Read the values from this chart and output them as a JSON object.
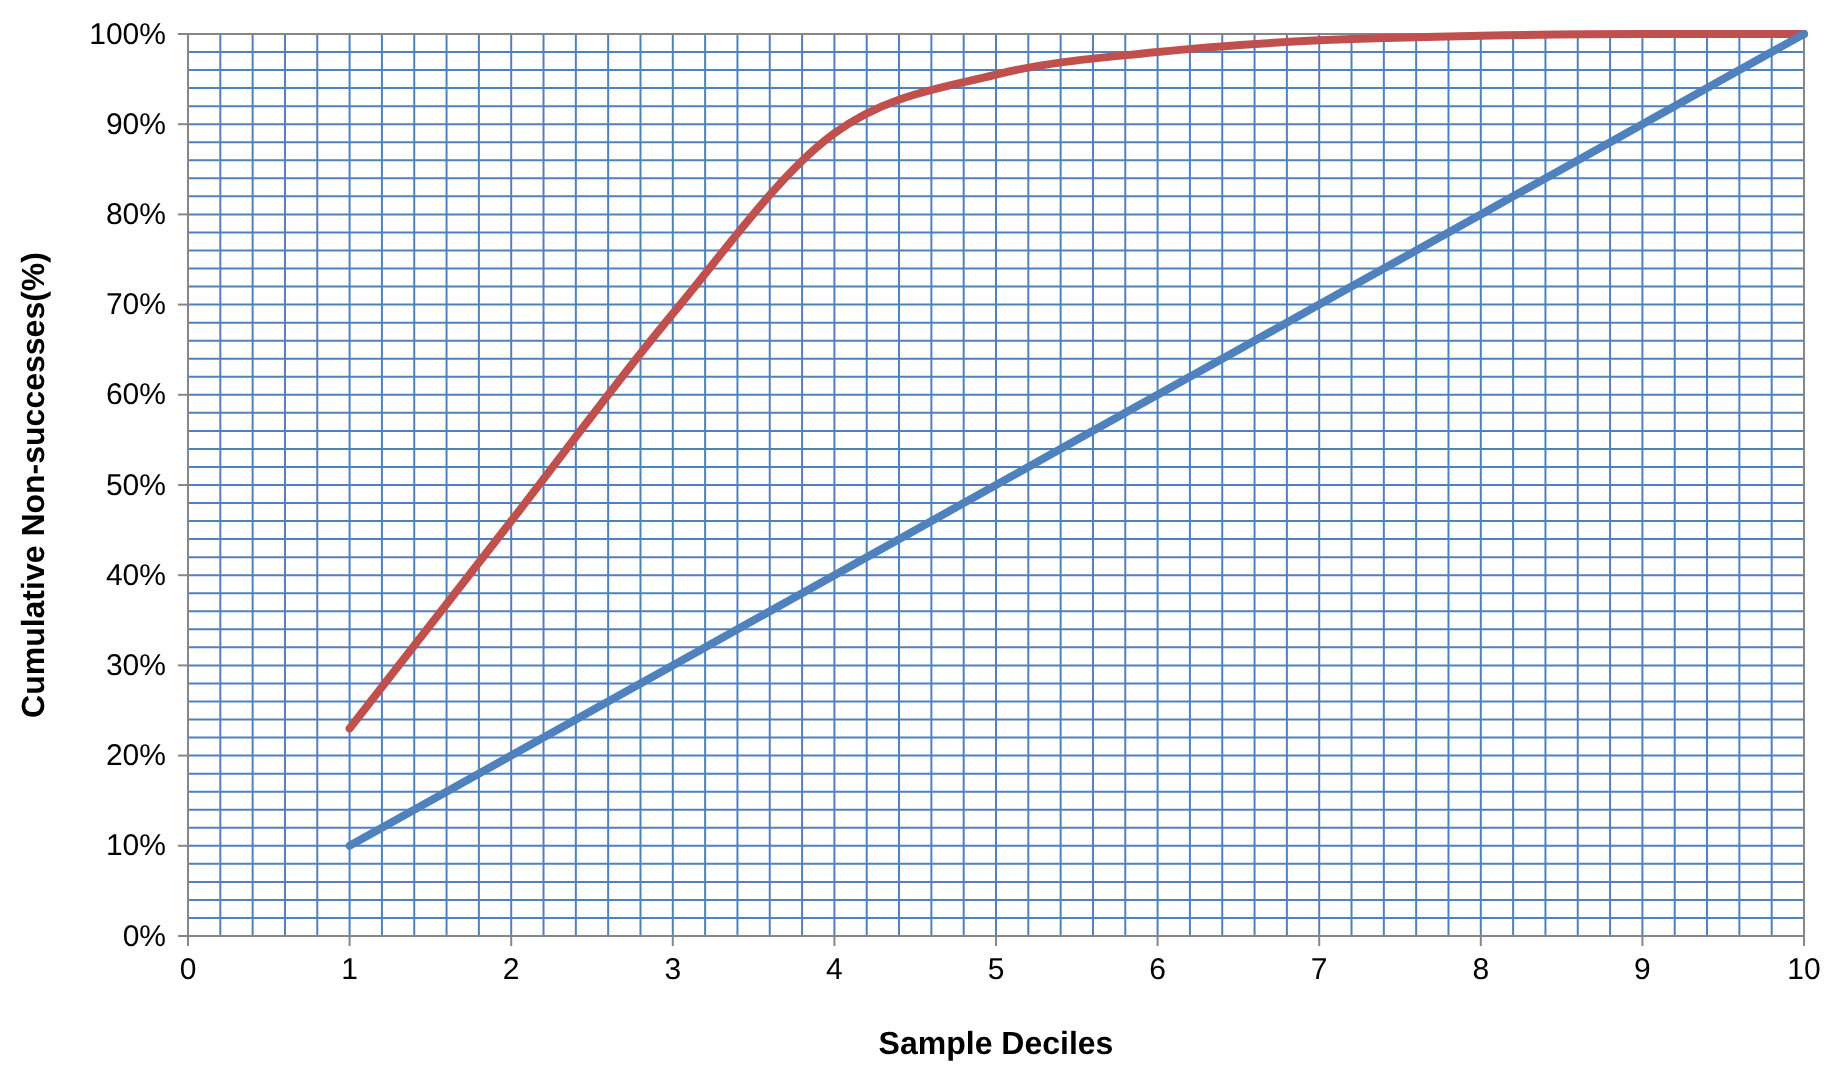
{
  "chart_data": {
    "type": "line",
    "xlabel": "Sample Deciles",
    "ylabel": "Cumulative Non-successes(%)",
    "x": [
      1,
      2,
      3,
      4,
      5,
      6,
      7,
      8,
      9,
      10
    ],
    "series": [
      {
        "color": "#c0504d",
        "values": [
          23,
          46,
          69,
          89,
          95.5,
          98,
          99.3,
          99.8,
          100,
          100
        ]
      },
      {
        "color": "#4f81bd",
        "values": [
          10,
          20,
          30,
          40,
          50,
          60,
          70,
          80,
          90,
          100
        ]
      }
    ],
    "xlim": [
      0,
      10
    ],
    "xticks": [
      0,
      {
        "value": 0.2,
        "label": null
      },
      {
        "value": 0.4,
        "label": null
      },
      {
        "value": 0.6,
        "label": null
      },
      {
        "value": 0.8,
        "label": null
      },
      1,
      {
        "value": 1.2,
        "label": null
      },
      {
        "value": 1.4,
        "label": null
      },
      {
        "value": 1.6,
        "label": null
      },
      {
        "value": 1.8,
        "label": null
      },
      2,
      {
        "value": 2.2,
        "label": null
      },
      {
        "value": 2.4,
        "label": null
      },
      {
        "value": 2.6,
        "label": null
      },
      {
        "value": 2.8,
        "label": null
      },
      3,
      {
        "value": 3.2,
        "label": null
      },
      {
        "value": 3.4,
        "label": null
      },
      {
        "value": 3.6,
        "label": null
      },
      {
        "value": 3.8,
        "label": null
      },
      4,
      {
        "value": 4.2,
        "label": null
      },
      {
        "value": 4.4,
        "label": null
      },
      {
        "value": 4.6,
        "label": null
      },
      {
        "value": 4.8,
        "label": null
      },
      5,
      {
        "value": 5.2,
        "label": null
      },
      {
        "value": 5.4,
        "label": null
      },
      {
        "value": 5.6,
        "label": null
      },
      {
        "value": 5.8,
        "label": null
      },
      6,
      {
        "value": 6.2,
        "label": null
      },
      {
        "value": 6.4,
        "label": null
      },
      {
        "value": 6.6,
        "label": null
      },
      {
        "value": 6.8,
        "label": null
      },
      7,
      {
        "value": 7.2,
        "label": null
      },
      {
        "value": 7.4,
        "label": null
      },
      {
        "value": 7.6,
        "label": null
      },
      {
        "value": 7.8,
        "label": null
      },
      8,
      {
        "value": 8.2,
        "label": null
      },
      {
        "value": 8.4,
        "label": null
      },
      {
        "value": 8.6,
        "label": null
      },
      {
        "value": 8.8,
        "label": null
      },
      9,
      {
        "value": 9.2,
        "label": null
      },
      {
        "value": 9.4,
        "label": null
      },
      {
        "value": 9.6,
        "label": null
      },
      {
        "value": 9.8,
        "label": null
      },
      10
    ],
    "ylim": [
      0,
      100
    ],
    "yticks": [
      {
        "value": 0,
        "label": "0%"
      },
      {
        "value": 2,
        "label": null
      },
      {
        "value": 4,
        "label": null
      },
      {
        "value": 6,
        "label": null
      },
      {
        "value": 8,
        "label": null
      },
      {
        "value": 10,
        "label": "10%"
      },
      {
        "value": 12,
        "label": null
      },
      {
        "value": 14,
        "label": null
      },
      {
        "value": 16,
        "label": null
      },
      {
        "value": 18,
        "label": null
      },
      {
        "value": 20,
        "label": "20%"
      },
      {
        "value": 22,
        "label": null
      },
      {
        "value": 24,
        "label": null
      },
      {
        "value": 26,
        "label": null
      },
      {
        "value": 28,
        "label": null
      },
      {
        "value": 30,
        "label": "30%"
      },
      {
        "value": 32,
        "label": null
      },
      {
        "value": 34,
        "label": null
      },
      {
        "value": 36,
        "label": null
      },
      {
        "value": 38,
        "label": null
      },
      {
        "value": 40,
        "label": "40%"
      },
      {
        "value": 42,
        "label": null
      },
      {
        "value": 44,
        "label": null
      },
      {
        "value": 46,
        "label": null
      },
      {
        "value": 48,
        "label": null
      },
      {
        "value": 50,
        "label": "50%"
      },
      {
        "value": 52,
        "label": null
      },
      {
        "value": 54,
        "label": null
      },
      {
        "value": 56,
        "label": null
      },
      {
        "value": 58,
        "label": null
      },
      {
        "value": 60,
        "label": "60%"
      },
      {
        "value": 62,
        "label": null
      },
      {
        "value": 64,
        "label": null
      },
      {
        "value": 66,
        "label": null
      },
      {
        "value": 68,
        "label": null
      },
      {
        "value": 70,
        "label": "70%"
      },
      {
        "value": 72,
        "label": null
      },
      {
        "value": 74,
        "label": null
      },
      {
        "value": 76,
        "label": null
      },
      {
        "value": 78,
        "label": null
      },
      {
        "value": 80,
        "label": "80%"
      },
      {
        "value": 82,
        "label": null
      },
      {
        "value": 84,
        "label": null
      },
      {
        "value": 86,
        "label": null
      },
      {
        "value": 88,
        "label": null
      },
      {
        "value": 90,
        "label": "90%"
      },
      {
        "value": 92,
        "label": null
      },
      {
        "value": 94,
        "label": null
      },
      {
        "value": 96,
        "label": null
      },
      {
        "value": 98,
        "label": null
      },
      {
        "value": 100,
        "label": "100%"
      }
    ],
    "grid": true,
    "marker": "none",
    "line_style": "solid"
  }
}
